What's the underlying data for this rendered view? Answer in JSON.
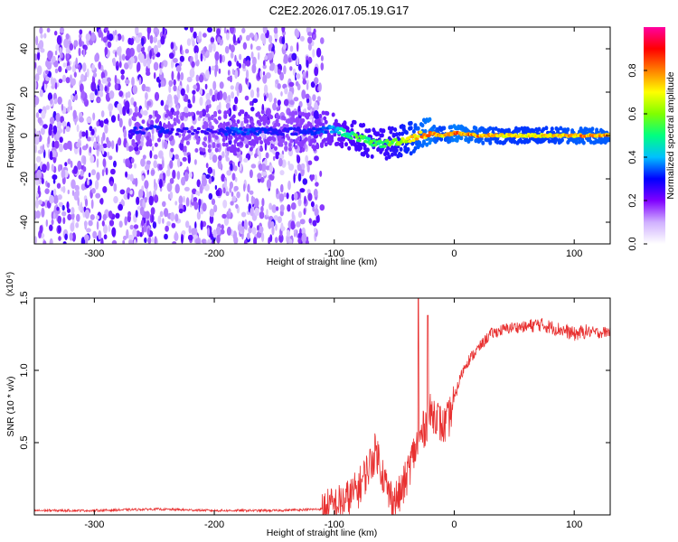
{
  "title": "C2E2.2026.017.05.19.G17",
  "chart_data": [
    {
      "type": "heatmap",
      "xlabel": "Height of straight line (km)",
      "ylabel": "Frequency (Hz)",
      "xlim": [
        -350,
        130
      ],
      "ylim": [
        -50,
        50
      ],
      "xticks": [
        -300,
        -200,
        -100,
        0,
        100
      ],
      "xtick_labels": [
        "-300",
        "-200",
        "-100",
        "0",
        "100"
      ],
      "yticks": [
        -40,
        -20,
        0,
        20,
        40
      ],
      "ytick_labels": [
        "-40",
        "-20",
        "0",
        "20",
        "40"
      ],
      "colorbar": {
        "label": "Normalized spectral amplitude",
        "range": [
          0,
          1
        ],
        "ticks": [
          0.0,
          0.2,
          0.4,
          0.6,
          0.8
        ],
        "tick_labels": [
          "0.0",
          "0.2",
          "0.4",
          "0.6",
          "0.8"
        ],
        "colors": [
          "#ffffff",
          "#d0b0ff",
          "#8000ff",
          "#0000ff",
          "#00c0ff",
          "#00ff80",
          "#80ff00",
          "#ffff00",
          "#ff8000",
          "#ff0000",
          "#ff00a0"
        ]
      },
      "ridge": {
        "x": [
          -270,
          -250,
          -230,
          -200,
          -180,
          -160,
          -140,
          -120,
          -100,
          -90,
          -80,
          -70,
          -60,
          -50,
          -40,
          -30,
          -20,
          -10,
          0,
          20,
          40,
          60,
          80,
          100,
          130
        ],
        "freq": [
          2,
          3,
          2,
          2,
          2,
          2,
          2,
          2,
          3,
          1,
          -1,
          -3,
          -4,
          -3,
          -2,
          0,
          1,
          0,
          1,
          0,
          0,
          0,
          0,
          0,
          0
        ],
        "amplitude": [
          0.3,
          0.35,
          0.3,
          0.3,
          0.4,
          0.35,
          0.3,
          0.35,
          0.45,
          0.55,
          0.6,
          0.6,
          0.6,
          0.65,
          0.75,
          0.85,
          0.9,
          0.8,
          0.9,
          0.85,
          0.8,
          0.8,
          0.8,
          0.85,
          0.85
        ]
      }
    },
    {
      "type": "line",
      "xlabel": "Height of straight line (km)",
      "ylabel": "SNR (10 * v/v)",
      "y_scale_label": "(x10⁴)",
      "xlim": [
        -350,
        130
      ],
      "ylim": [
        0,
        1.5
      ],
      "xticks": [
        -300,
        -200,
        -100,
        0,
        100
      ],
      "xtick_labels": [
        "-300",
        "-200",
        "-100",
        "0",
        "100"
      ],
      "yticks": [
        0.5,
        1.0,
        1.5
      ],
      "ytick_labels": [
        "0.5",
        "1.0",
        "1.5"
      ],
      "series": [
        {
          "name": "SNR",
          "color": "#e83030",
          "x": [
            -350,
            -300,
            -250,
            -200,
            -150,
            -110,
            -100,
            -90,
            -80,
            -70,
            -65,
            -60,
            -55,
            -50,
            -45,
            -40,
            -35,
            -30,
            -25,
            -20,
            -15,
            -10,
            -5,
            0,
            5,
            10,
            20,
            30,
            40,
            50,
            60,
            70,
            80,
            90,
            100,
            110,
            120,
            130
          ],
          "values": [
            0.03,
            0.03,
            0.04,
            0.03,
            0.03,
            0.04,
            0.06,
            0.1,
            0.18,
            0.35,
            0.45,
            0.3,
            0.15,
            0.1,
            0.14,
            0.25,
            0.4,
            0.5,
            0.6,
            0.7,
            0.7,
            0.6,
            0.65,
            0.8,
            0.95,
            1.05,
            1.15,
            1.25,
            1.28,
            1.3,
            1.3,
            1.32,
            1.3,
            1.28,
            1.25,
            1.27,
            1.26,
            1.27
          ]
        }
      ],
      "spikes": [
        {
          "x": -30,
          "value": 1.5
        },
        {
          "x": -22,
          "value": 1.38
        }
      ]
    }
  ]
}
